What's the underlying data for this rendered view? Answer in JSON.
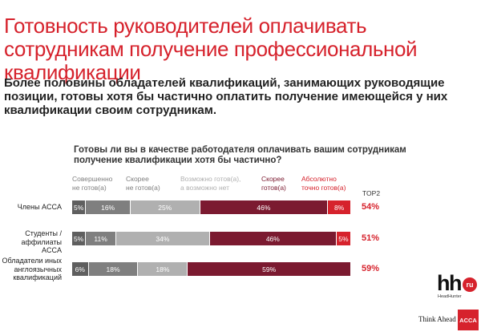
{
  "title": "Готовность руководителей оплачивать сотрудникам получение профессиональной квалификации",
  "subtitle": "Более половины обладателей квалификаций, занимающих руководящие позиции, готовы хотя бы частично оплатить получение имеющейся у них квалификации своим сотрудникам.",
  "question": "Готовы ли вы в качестве работодателя оплачивать вашим сотрудникам получение квалификации хотя бы частично?",
  "top2_label": "TOP2",
  "colors": {
    "accent": "#d6222c",
    "dark_gray": "#5f5f5f",
    "mid_gray": "#7f7f7f",
    "light_gray": "#b0b0b0",
    "maroon": "#7b1a30",
    "red": "#d6222c"
  },
  "chart_data": {
    "type": "bar",
    "stacked": true,
    "orientation": "horizontal",
    "title": "Готовы ли вы в качестве работодателя оплачивать вашим сотрудникам получение квалификации хотя бы частично?",
    "categories": [
      "Члены ACCA",
      "Студенты / аффилиаты ACCA",
      "Обладатели иных англоязычных квалификаций"
    ],
    "series": [
      {
        "name": "Совершенно не готов(а)",
        "color": "#5f5f5f",
        "values": [
          5,
          5,
          6
        ]
      },
      {
        "name": "Скорее не готов(а)",
        "color": "#7f7f7f",
        "values": [
          16,
          11,
          18
        ]
      },
      {
        "name": "Возможно готов(а), а возможно нет",
        "color": "#b0b0b0",
        "values": [
          25,
          34,
          18
        ]
      },
      {
        "name": "Скорее готов(а)",
        "color": "#7b1a30",
        "values": [
          46,
          46,
          59
        ]
      },
      {
        "name": "Абсолютно точно готов(а)",
        "color": "#d6222c",
        "values": [
          8,
          5,
          0
        ]
      }
    ],
    "top2": [
      "54%",
      "51%",
      "59%"
    ],
    "xlim": [
      0,
      100
    ],
    "value_suffix": "%",
    "legend": "top"
  },
  "logos": {
    "hh_text": "hh",
    "hh_ru": "ru",
    "hh_sub": "HeadHunter",
    "think_ahead": "Think Ahead",
    "acca": "ACCA"
  }
}
